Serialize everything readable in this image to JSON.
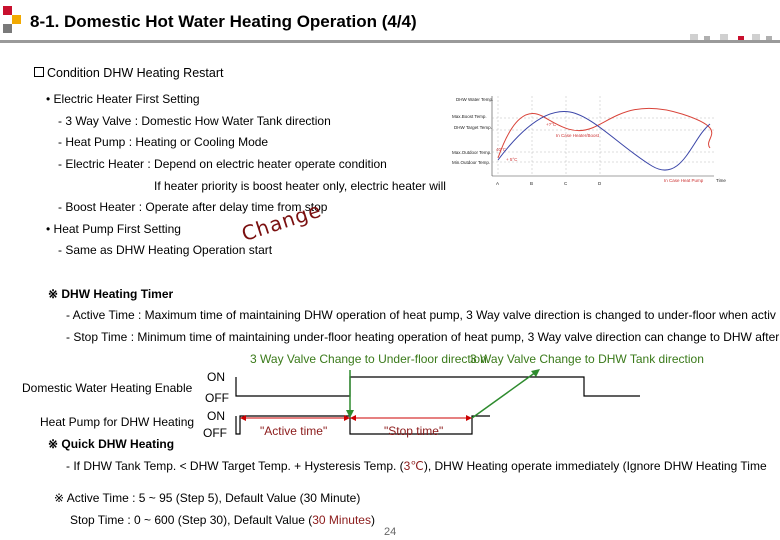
{
  "header": {
    "title": "8-1. Domestic Hot Water Heating Operation (4/4)",
    "brand_colors": [
      "#c8102e",
      "#f2a900",
      "#7a7a7a"
    ]
  },
  "section_title": "Condition DHW Heating Restart",
  "electric_first": {
    "heading": "• Electric Heater First Setting",
    "lines": [
      "- 3 Way Valve : Domestic How Water Tank direction",
      "- Heat Pump : Heating or Cooling Mode",
      "- Electric Heater : Depend on electric heater operate condition",
      "If heater priority is boost heater only, electric heater will",
      "- Boost Heater : Operate after delay time from stop"
    ]
  },
  "heatpump_first": {
    "heading": "• Heat Pump First Setting",
    "line": "- Same as DHW Heating Operation start",
    "overlay_word": "Change"
  },
  "graph": {
    "y_labels": [
      "DHW Water Temp.",
      "Max.Boost Temp.",
      "DHW Target Temp.",
      "Max.Outdoor Temp.",
      "Min.Outdoor Temp."
    ],
    "x_ticks": [
      "A",
      "B",
      "C",
      "D"
    ],
    "x_axis_label": "Time",
    "annotations": [
      "+?°C",
      "In Case Heater/Boost",
      "40°C",
      "+ 5°C",
      "In Case Heat Pump"
    ]
  },
  "timer": {
    "heading": "※ DHW Heating Timer",
    "active": "- Active Time : Maximum time of maintaining DHW operation of heat pump, 3 Way valve direction is changed to under-floor when activ",
    "stop": "- Stop Time : Minimum time of maintaining under-floor heating operation of heat pump, 3 Way valve direction can change to DHW after"
  },
  "timing": {
    "note_underfloor": "3 Way Valve Change to Under-floor direction",
    "note_dhw": "3 Way Valve Change to DHW Tank direction",
    "row1_label": "Domestic Water Heating Enable",
    "row2_label": "Heat Pump for DHW Heating",
    "on_label": "ON",
    "off_label": "OFF",
    "active_label": "\"Active time\"",
    "stop_label": "\"Stop time\""
  },
  "quick": {
    "heading": "※ Quick DHW Heating",
    "line_pre": "- If DHW Tank Temp. < DHW Target Temp. + Hysteresis Temp. (",
    "line_hl": "3℃",
    "line_post": "),  DHW Heating operate immediately (Ignore DHW Heating Time",
    "active_range": "※ Active Time : 5 ~ 95 (Step 5), Default Value (30 Minute)",
    "stop_pre": "Stop Time : 0 ~ 600 (Step 30), Default Value (",
    "stop_hl": "30 Minutes",
    "stop_post": ")"
  },
  "page_number": "24"
}
